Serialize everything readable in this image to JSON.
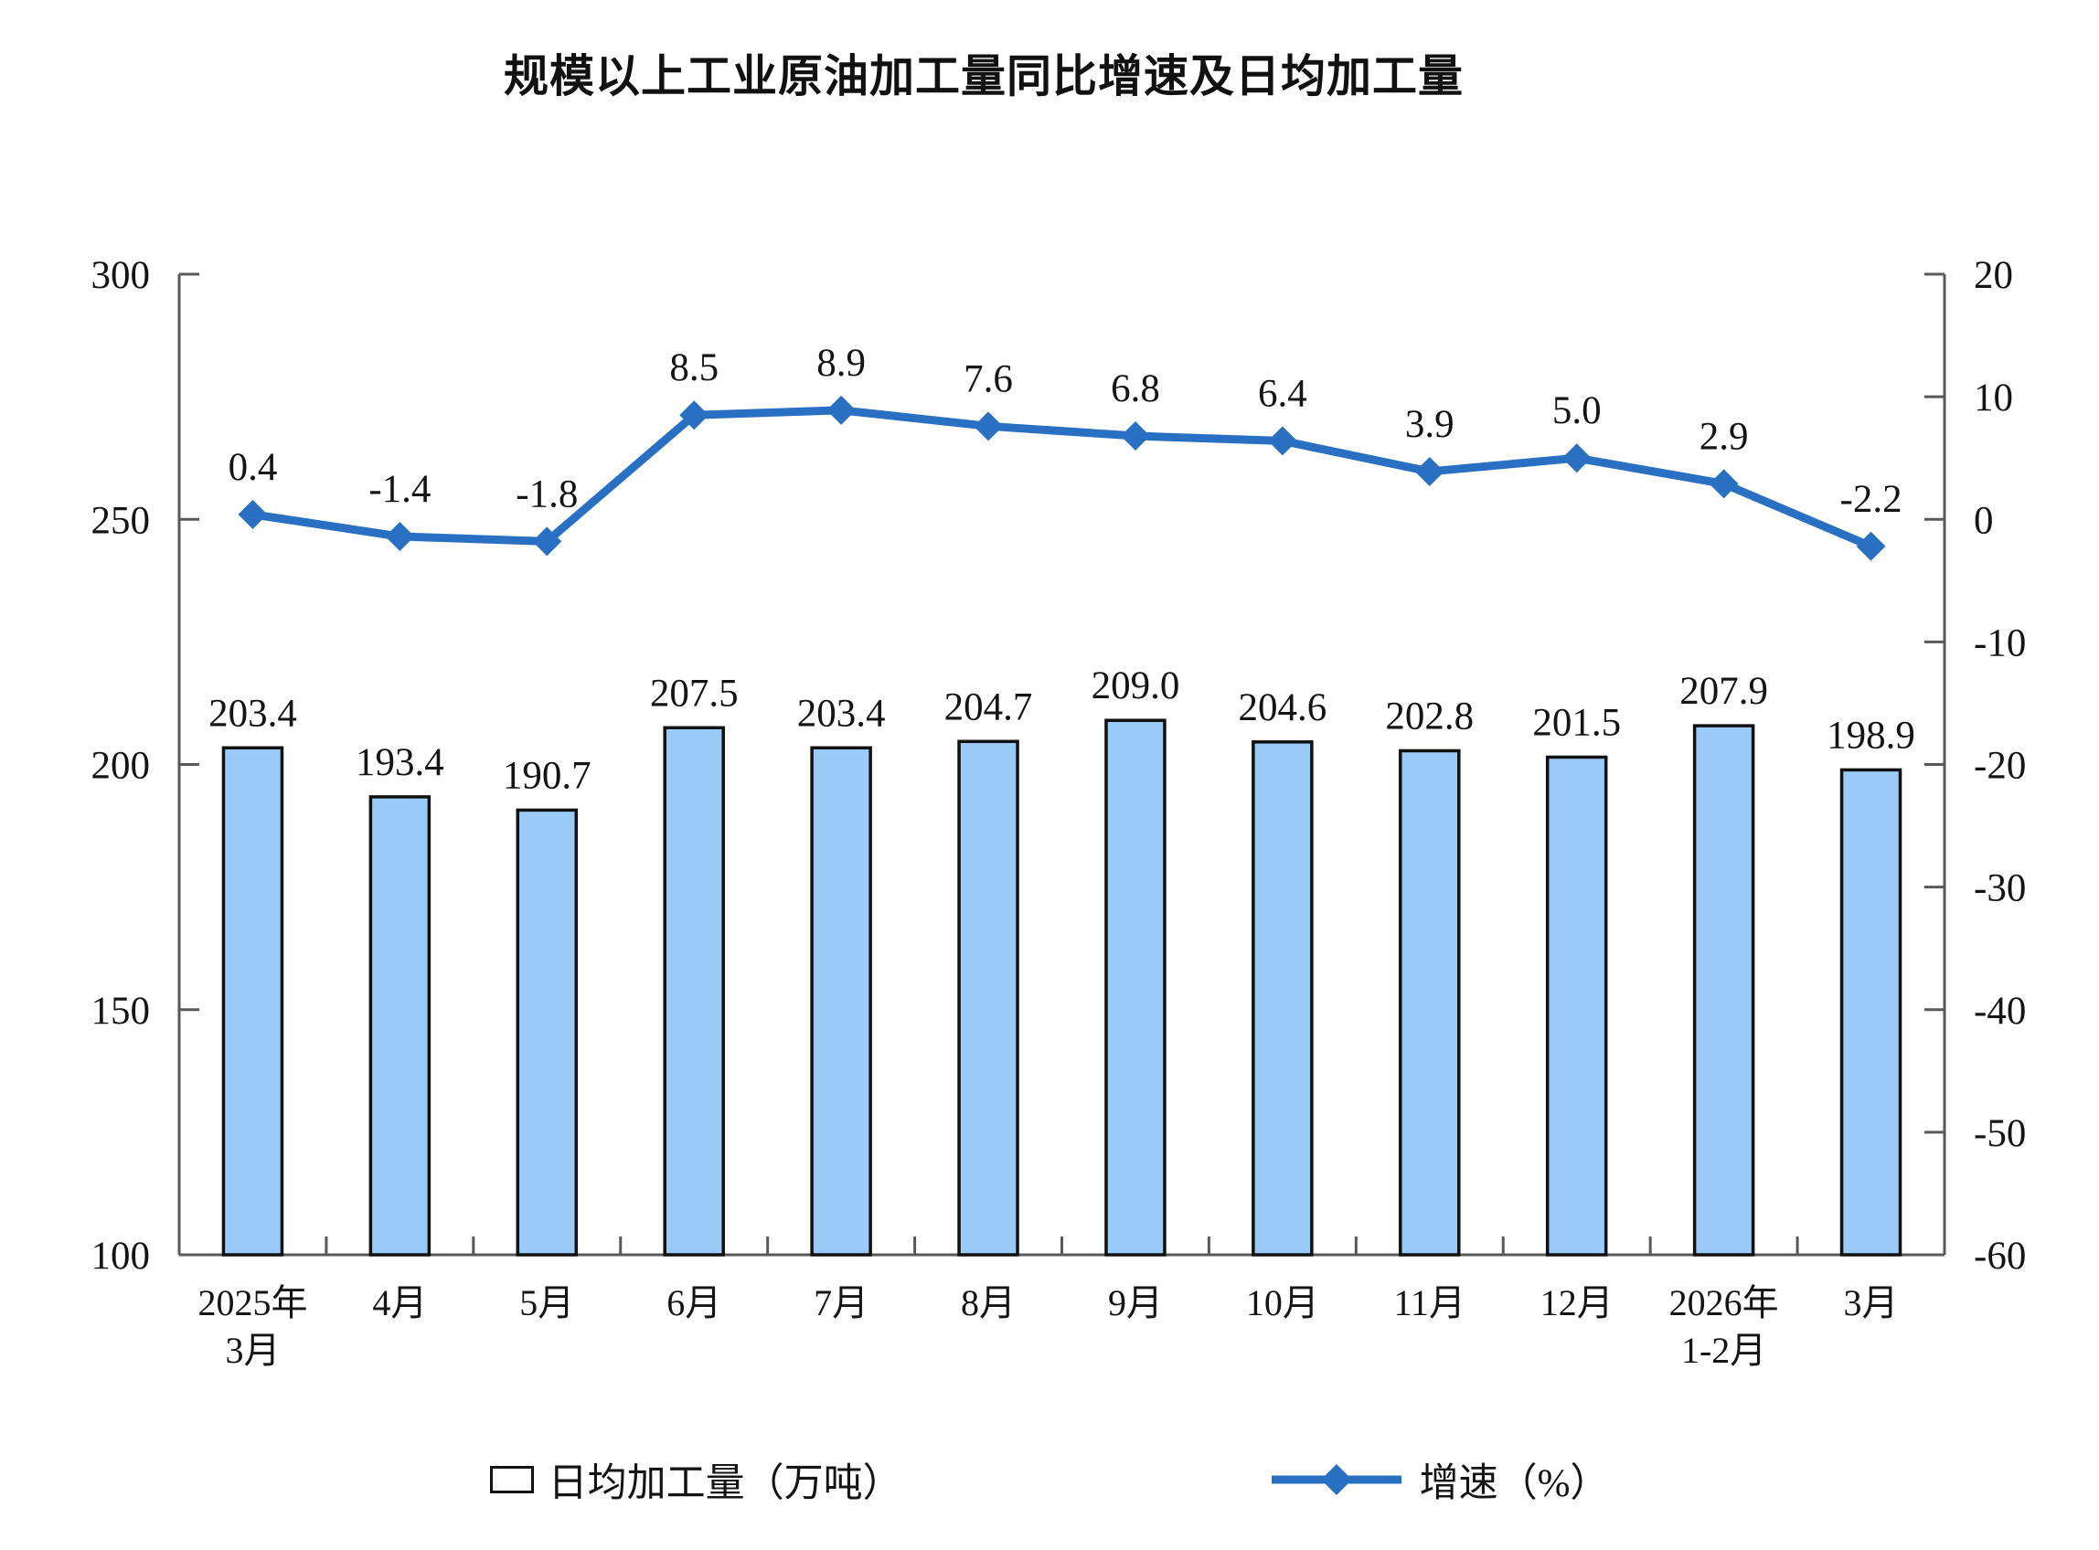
{
  "chart_data": {
    "type": "bar",
    "combo": "bar+line",
    "title": "规模以上工业原油加工量同比增速及日均加工量",
    "categories": [
      [
        "2025年",
        "3月"
      ],
      [
        "4月"
      ],
      [
        "5月"
      ],
      [
        "6月"
      ],
      [
        "7月"
      ],
      [
        "8月"
      ],
      [
        "9月"
      ],
      [
        "10月"
      ],
      [
        "11月"
      ],
      [
        "12月"
      ],
      [
        "2026年",
        "1-2月"
      ],
      [
        "3月"
      ]
    ],
    "series": [
      {
        "name": "日均加工量（万吨）",
        "type": "bar",
        "axis": "left",
        "values": [
          203.4,
          193.4,
          190.7,
          207.5,
          203.4,
          204.7,
          209.0,
          204.6,
          202.8,
          201.5,
          207.9,
          198.9
        ],
        "labels": [
          "203.4",
          "193.4",
          "190.7",
          "207.5",
          "203.4",
          "204.7",
          "209.0",
          "204.6",
          "202.8",
          "201.5",
          "207.9",
          "198.9"
        ]
      },
      {
        "name": "增速（%）",
        "type": "line",
        "axis": "right",
        "values": [
          0.4,
          -1.4,
          -1.8,
          8.5,
          8.9,
          7.6,
          6.8,
          6.4,
          3.9,
          5.0,
          2.9,
          -2.2
        ],
        "labels": [
          "0.4",
          "-1.4",
          "-1.8",
          "8.5",
          "8.9",
          "7.6",
          "6.8",
          "6.4",
          "3.9",
          "5.0",
          "2.9",
          "-2.2"
        ]
      }
    ],
    "left_axis": {
      "min": 100,
      "max": 300,
      "step": 50,
      "tick_labels": [
        "300",
        "250",
        "200",
        "150",
        "100"
      ]
    },
    "right_axis": {
      "min": -60,
      "max": 20,
      "step": 10,
      "tick_labels": [
        "20",
        "10",
        "0",
        "-10",
        "-20",
        "-30",
        "-40",
        "-50",
        "-60"
      ]
    },
    "legend": {
      "bars": "日均加工量（万吨）",
      "line": "增速（%）"
    },
    "grid": "off",
    "legend_position": "bottom",
    "colors": {
      "bar_fill": "#9ACAF8",
      "bar_border": "#111111",
      "line": "#2A70C2",
      "axis": "#595959",
      "text": "#141414"
    }
  }
}
